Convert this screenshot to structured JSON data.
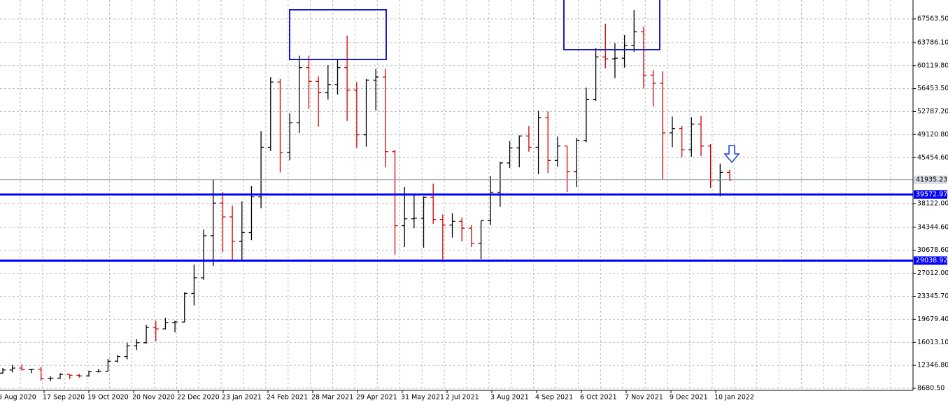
{
  "chart_data": {
    "type": "ohlc",
    "x_labels": [
      "6 Aug 2020",
      "17 Sep 2020",
      "19 Oct 2020",
      "20 Nov 2020",
      "22 Dec 2020",
      "23 Jan 2021",
      "24 Feb 2021",
      "28 Mar 2021",
      "29 Apr 2021",
      "31 May 2021",
      "2 Jul 2021",
      "3 Aug 2021",
      "4 Sep 2021",
      "6 Oct 2021",
      "7 Nov 2021",
      "9 Dec 2021",
      "10 Jan 2022"
    ],
    "open": [
      11100,
      11600,
      11900,
      11650,
      11700,
      10250,
      10300,
      10900,
      10750,
      10650,
      11350,
      11400,
      13000,
      13750,
      15450,
      15950,
      18400,
      18150,
      19150,
      19250,
      23800,
      26300,
      33000,
      38200,
      36000,
      32100,
      33500,
      39200,
      47100,
      57500,
      46300,
      51000,
      59800,
      57600,
      55800,
      57100,
      59800,
      56200,
      49100,
      57800,
      58300,
      46400,
      34600,
      35700,
      35800,
      39100,
      35600,
      34700,
      35300,
      34200,
      31800,
      35400,
      39900,
      44600,
      47000,
      48900,
      47100,
      51800,
      45000,
      47300,
      43200,
      48200,
      54700,
      61500,
      61200,
      61300,
      63300,
      65500,
      58600,
      57300,
      49400,
      50100,
      46700,
      50800,
      47300,
      41900,
      43100
    ],
    "high": [
      11900,
      12400,
      12500,
      11800,
      12100,
      10600,
      11100,
      10950,
      10950,
      11500,
      11750,
      13350,
      14000,
      15950,
      16500,
      18800,
      19450,
      19900,
      19450,
      24000,
      28400,
      34000,
      41900,
      40000,
      37800,
      38500,
      40900,
      49700,
      58300,
      58000,
      52500,
      61700,
      61700,
      58400,
      60200,
      61200,
      64900,
      57500,
      58000,
      59600,
      59600,
      46700,
      40800,
      39500,
      39300,
      41300,
      36400,
      36600,
      35900,
      34700,
      35400,
      42500,
      44800,
      48100,
      49000,
      50500,
      52900,
      52800,
      48800,
      47300,
      48600,
      56600,
      62900,
      66800,
      63700,
      65000,
      69000,
      66300,
      59400,
      59200,
      52000,
      50500,
      51900,
      52100,
      47600,
      44500,
      43500
    ],
    "low": [
      11000,
      11200,
      11500,
      11100,
      9900,
      9850,
      10200,
      10150,
      10400,
      10550,
      11200,
      11400,
      12800,
      13300,
      14800,
      15800,
      16200,
      18100,
      17600,
      19200,
      21900,
      26000,
      28200,
      30400,
      28900,
      29200,
      32300,
      37400,
      46500,
      43100,
      45000,
      49400,
      53200,
      50400,
      54700,
      55500,
      51300,
      47000,
      47200,
      53000,
      43900,
      30000,
      31200,
      34200,
      31100,
      34900,
      28800,
      32700,
      32100,
      31200,
      29300,
      34700,
      37600,
      43800,
      43900,
      46400,
      42800,
      43000,
      44000,
      40000,
      40800,
      47900,
      54500,
      59700,
      58100,
      59800,
      62300,
      56500,
      53600,
      42000,
      47100,
      45500,
      45600,
      45700,
      40600,
      39300,
      41700
    ],
    "close": [
      11600,
      11900,
      11650,
      11700,
      10250,
      10300,
      10900,
      10750,
      10650,
      11350,
      11400,
      13000,
      13750,
      15450,
      15950,
      18400,
      18150,
      19150,
      19250,
      23800,
      26300,
      33000,
      38200,
      36000,
      32100,
      33500,
      39200,
      47100,
      57500,
      46300,
      51000,
      59800,
      57600,
      55800,
      57100,
      59800,
      56200,
      49100,
      57800,
      58300,
      46400,
      34600,
      35700,
      35800,
      39100,
      35600,
      34700,
      35300,
      34200,
      31800,
      35400,
      39900,
      44600,
      47000,
      48900,
      47100,
      51800,
      45000,
      47300,
      43200,
      48200,
      54700,
      61500,
      61200,
      61300,
      63300,
      65500,
      58600,
      57300,
      49400,
      50100,
      46700,
      50800,
      47300,
      41900,
      43100,
      41935.23
    ],
    "up_color": "#000000",
    "down_color": "#d00000",
    "ylim": [
      8346,
      70575
    ],
    "yticks": [
      {
        "value": 67563.5,
        "label": "67563.50"
      },
      {
        "value": 63786.1,
        "label": "63786.10"
      },
      {
        "value": 60119.8,
        "label": "60119.80"
      },
      {
        "value": 56453.5,
        "label": "56453.50"
      },
      {
        "value": 52787.2,
        "label": "52787.20"
      },
      {
        "value": 49120.8,
        "label": "49120.80"
      },
      {
        "value": 45454.6,
        "label": "45454.60"
      },
      {
        "value": 38122,
        "label": "38122.00"
      },
      {
        "value": 34344.6,
        "label": "34344.60"
      },
      {
        "value": 30678.6,
        "label": "30678.60"
      },
      {
        "value": 27012,
        "label": "27012.00"
      },
      {
        "value": 23345.7,
        "label": "23345.70"
      },
      {
        "value": 19679.4,
        "label": "19679.40"
      },
      {
        "value": 16013.1,
        "label": "16013.10"
      },
      {
        "value": 12346.8,
        "label": "12346.80"
      },
      {
        "value": 8680.5,
        "label": "8680.50"
      }
    ],
    "grid": true,
    "hlines": [
      39572.97,
      29038.92
    ],
    "hline_color": "#0000ff",
    "last_price": 41935.23
  }
}
